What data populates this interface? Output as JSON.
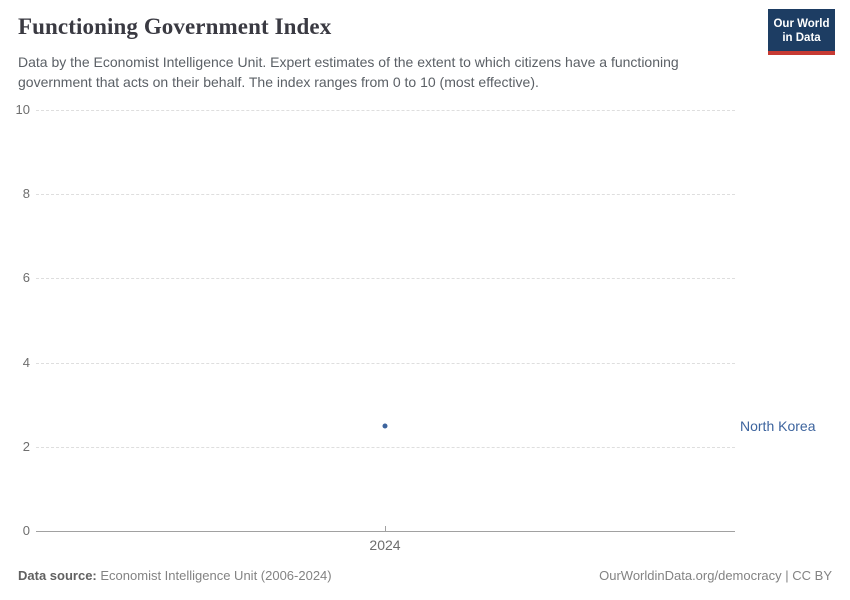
{
  "header": {
    "title": "Functioning Government Index",
    "subtitle": "Data by the Economist Intelligence Unit. Expert estimates of the extent to which citizens have a functioning government that acts on their behalf. The index ranges from 0 to 10 (most effective).",
    "logo": {
      "line1": "Our World",
      "line2": "in Data",
      "bg_color": "#1d3d63",
      "stripe_color": "#c73a33"
    }
  },
  "chart_data": {
    "type": "scatter",
    "title": "Functioning Government Index",
    "series": [
      {
        "name": "North Korea",
        "x": [
          2024
        ],
        "y": [
          2.5
        ]
      }
    ],
    "xticks": [
      2024
    ],
    "yticks": [
      0,
      2,
      4,
      6,
      8,
      10
    ],
    "ylim": [
      0,
      10
    ],
    "grid": true,
    "legend_position": "right-of-point",
    "point_color": "#3d649e",
    "entity_label_color": "#3d649e"
  },
  "footer": {
    "source_label": "Data source:",
    "source_value": "Economist Intelligence Unit (2006-2024)",
    "attribution": "OurWorldinData.org/democracy | CC BY"
  }
}
